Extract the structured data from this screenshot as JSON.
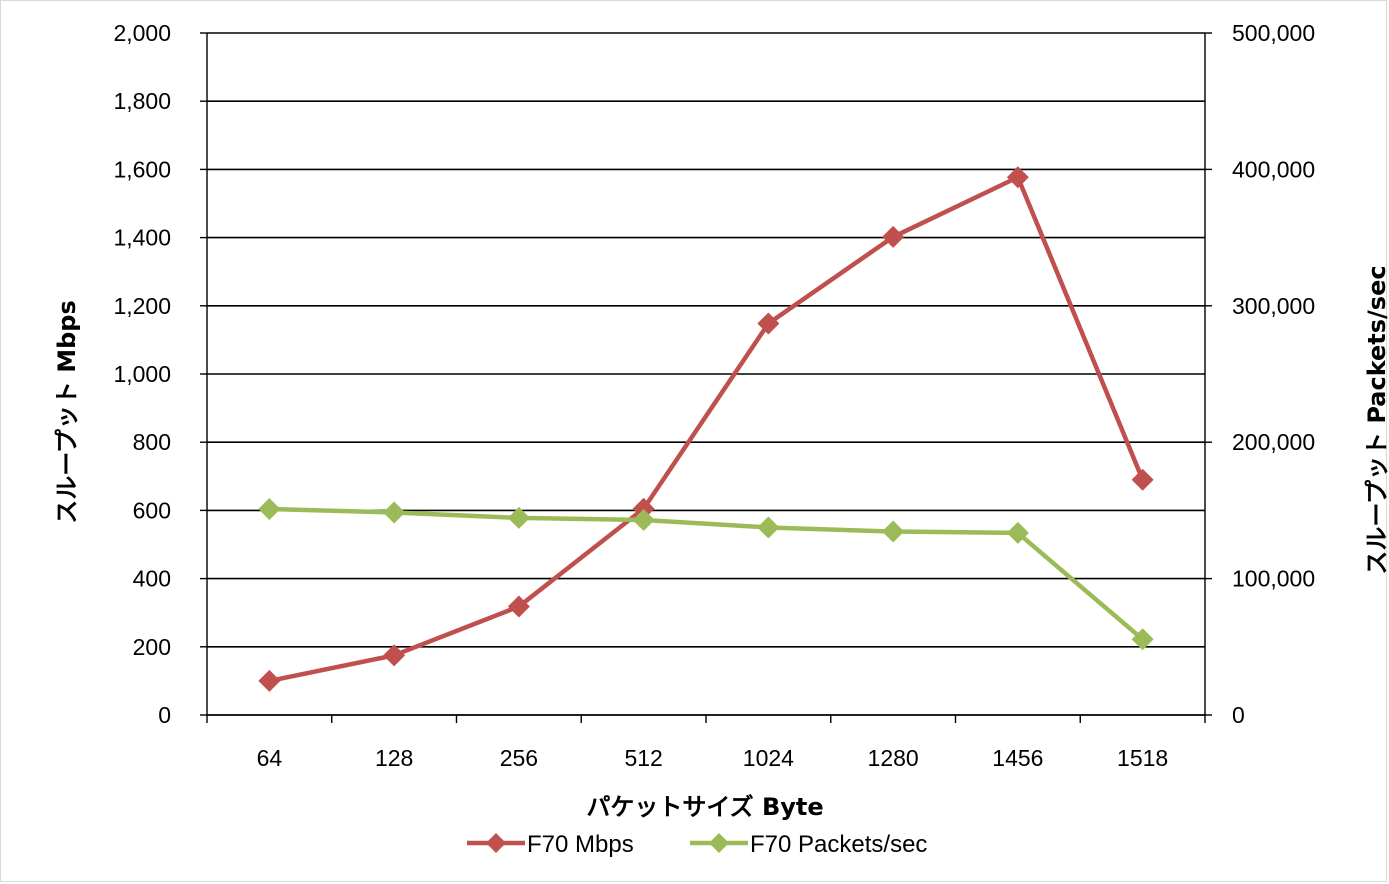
{
  "chart_data": {
    "type": "line",
    "categories": [
      "64",
      "128",
      "256",
      "512",
      "1024",
      "1280",
      "1456",
      "1518"
    ],
    "series": [
      {
        "name": "F70 Mbps",
        "axis": "left",
        "color": "#c0504d",
        "values": [
          100,
          175,
          318,
          605,
          1148,
          1402,
          1577,
          690
        ]
      },
      {
        "name": "F70 Packets/sec",
        "axis": "right",
        "color": "#9bbb59",
        "values": [
          151000,
          148500,
          144500,
          143000,
          137500,
          134500,
          133500,
          55500
        ]
      }
    ],
    "xlabel": "パケットサイズ Byte",
    "ylabel": "スループット Mbps",
    "y2label": "スループット Packets/sec",
    "ylim": [
      0,
      2000
    ],
    "y2lim": [
      0,
      500000
    ],
    "yticks": [
      "0",
      "200",
      "400",
      "600",
      "800",
      "1,000",
      "1,200",
      "1,400",
      "1,600",
      "1,800",
      "2,000"
    ],
    "y2ticks": [
      "0",
      "100,000",
      "200,000",
      "300,000",
      "400,000",
      "500,000"
    ],
    "grid": true,
    "legend_position": "bottom"
  }
}
